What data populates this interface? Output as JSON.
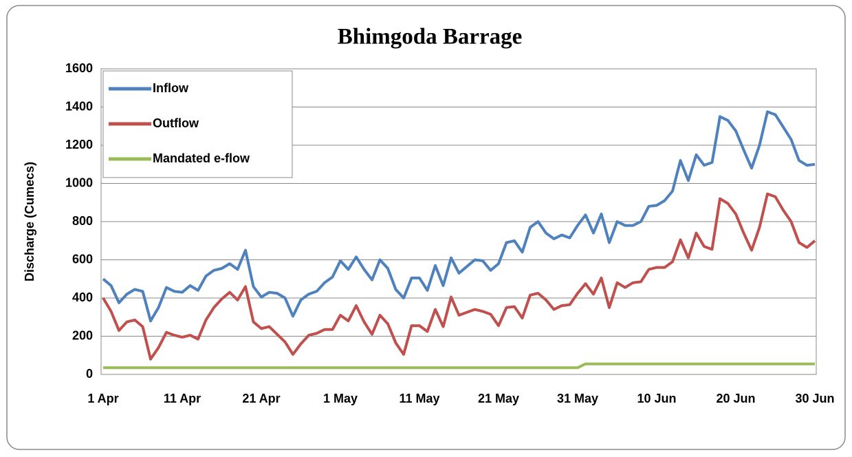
{
  "chart_data": {
    "type": "line",
    "title": "Bhimgoda Barrage",
    "y_label": "Discharge (Cumecs)",
    "categories": [
      "1 Apr",
      null,
      null,
      null,
      null,
      null,
      null,
      null,
      null,
      null,
      "11 Apr",
      null,
      null,
      null,
      null,
      null,
      null,
      null,
      null,
      null,
      "21 Apr",
      null,
      null,
      null,
      null,
      null,
      null,
      null,
      null,
      null,
      "1 May",
      null,
      null,
      null,
      null,
      null,
      null,
      null,
      null,
      null,
      "11 May",
      null,
      null,
      null,
      null,
      null,
      null,
      null,
      null,
      null,
      "21 May",
      null,
      null,
      null,
      null,
      null,
      null,
      null,
      null,
      null,
      "31 May",
      null,
      null,
      null,
      null,
      null,
      null,
      null,
      null,
      null,
      "10 Jun",
      null,
      null,
      null,
      null,
      null,
      null,
      null,
      null,
      null,
      "20 Jun",
      null,
      null,
      null,
      null,
      null,
      null,
      null,
      null,
      null,
      "30 Jun"
    ],
    "series": [
      {
        "name": "Inflow",
        "color": "#4f81bd",
        "values": [
          500,
          465,
          375,
          420,
          445,
          435,
          280,
          350,
          455,
          435,
          430,
          465,
          440,
          515,
          545,
          555,
          580,
          550,
          650,
          460,
          405,
          430,
          425,
          400,
          305,
          390,
          420,
          435,
          480,
          510,
          595,
          550,
          615,
          550,
          495,
          600,
          555,
          445,
          400,
          505,
          505,
          440,
          570,
          465,
          610,
          530,
          565,
          600,
          595,
          545,
          580,
          690,
          700,
          640,
          770,
          800,
          740,
          710,
          730,
          715,
          780,
          835,
          740,
          840,
          690,
          800,
          780,
          780,
          800,
          880,
          885,
          910,
          960,
          1120,
          1015,
          1150,
          1095,
          1110,
          1350,
          1330,
          1275,
          1175,
          1080,
          1200,
          1375,
          1360,
          1295,
          1230,
          1120,
          1095,
          1100
        ]
      },
      {
        "name": "Outflow",
        "color": "#c0504d",
        "values": [
          400,
          330,
          230,
          275,
          285,
          250,
          80,
          140,
          220,
          205,
          195,
          205,
          185,
          285,
          350,
          395,
          430,
          390,
          460,
          275,
          240,
          250,
          210,
          170,
          105,
          160,
          205,
          215,
          235,
          235,
          310,
          280,
          360,
          275,
          210,
          310,
          265,
          165,
          105,
          255,
          255,
          225,
          340,
          250,
          405,
          310,
          325,
          340,
          330,
          315,
          255,
          350,
          355,
          295,
          415,
          425,
          390,
          340,
          360,
          365,
          425,
          475,
          420,
          505,
          350,
          480,
          455,
          480,
          485,
          550,
          560,
          560,
          590,
          705,
          610,
          740,
          670,
          655,
          920,
          895,
          840,
          740,
          650,
          770,
          945,
          930,
          860,
          800,
          690,
          665,
          700
        ]
      },
      {
        "name": "Mandated e-flow",
        "color": "#9bbb59",
        "values": [
          35,
          35,
          35,
          35,
          35,
          35,
          35,
          35,
          35,
          35,
          35,
          35,
          35,
          35,
          35,
          35,
          35,
          35,
          35,
          35,
          35,
          35,
          35,
          35,
          35,
          35,
          35,
          35,
          35,
          35,
          35,
          35,
          35,
          35,
          35,
          35,
          35,
          35,
          35,
          35,
          35,
          35,
          35,
          35,
          35,
          35,
          35,
          35,
          35,
          35,
          35,
          35,
          35,
          35,
          35,
          35,
          35,
          35,
          35,
          35,
          35,
          55,
          55,
          55,
          55,
          55,
          55,
          55,
          55,
          55,
          55,
          55,
          55,
          55,
          55,
          55,
          55,
          55,
          55,
          55,
          55,
          55,
          55,
          55,
          55,
          55,
          55,
          55,
          55,
          55,
          55
        ]
      }
    ],
    "ylim": [
      0,
      1600
    ],
    "yticks": [
      0,
      200,
      400,
      600,
      800,
      1000,
      1200,
      1400,
      1600
    ],
    "grid": true,
    "legend": "top-left"
  }
}
